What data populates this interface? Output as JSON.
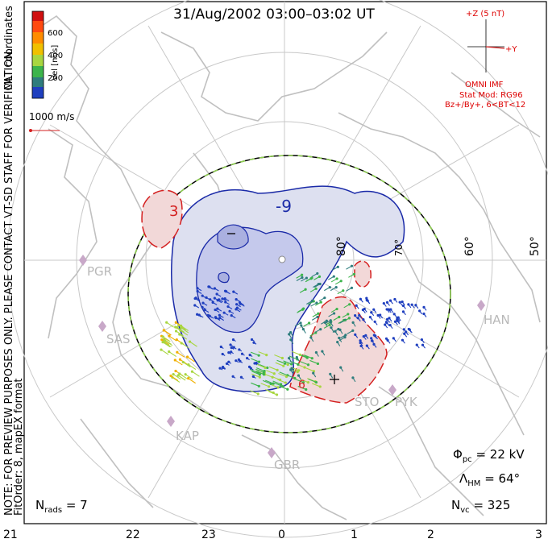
{
  "title": "31/Aug/2002 03:00–03:02 UT",
  "notes": {
    "coords": "MLT coordinates",
    "preview": "NOTE: FOR PREVIEW PURPOSES ONLY. PLEASE CONTACT VT-SD STAFF FOR VERIFICATION.",
    "fit": "FitOrder: 8, mapEX format"
  },
  "colorbar": {
    "label": "Vel [m/s]",
    "ticks": [
      "600",
      "400",
      "200"
    ],
    "colors": [
      "#d01010",
      "#ff6a00",
      "#f0b000",
      "#a8d640",
      "#3cb44b",
      "#2e7d7d",
      "#1f3fbf"
    ]
  },
  "vector_scale": "1000 m/s",
  "imf": {
    "z_label": "+Z (5 nT)",
    "y_label": "+Y",
    "source": "OMNI IMF",
    "model": "Stat Mod: RG96",
    "cond": "Bz+/By+, 6<BT<12"
  },
  "stats": {
    "phi_sym": "Φ",
    "phi_sub": "pc",
    "phi_val": "= 22 kV",
    "lam_sym": "Λ",
    "lam_sub": "HM",
    "lam_val": "= 64°",
    "nvc_sym": "N",
    "nvc_sub": "vc",
    "nvc_val": "= 325",
    "nrads_sym": "N",
    "nrads_sub": "rads",
    "nrads_val": "= 7"
  },
  "mlt_ticks": [
    "21",
    "22",
    "23",
    "0",
    "1",
    "2",
    "3"
  ],
  "lat_labels": [
    "80°",
    "70°",
    "60°",
    "50°"
  ],
  "contour_labels": [
    "-9",
    "3",
    "−",
    "6"
  ],
  "stations": [
    "PGR",
    "SAS",
    "KAP",
    "GBR",
    "STO",
    "PYK",
    "HAN"
  ],
  "colors": {
    "negative": "#1a2aa8",
    "positive": "#d42020",
    "hmb": "#8fd14f",
    "grid": "#c8c8c8"
  }
}
